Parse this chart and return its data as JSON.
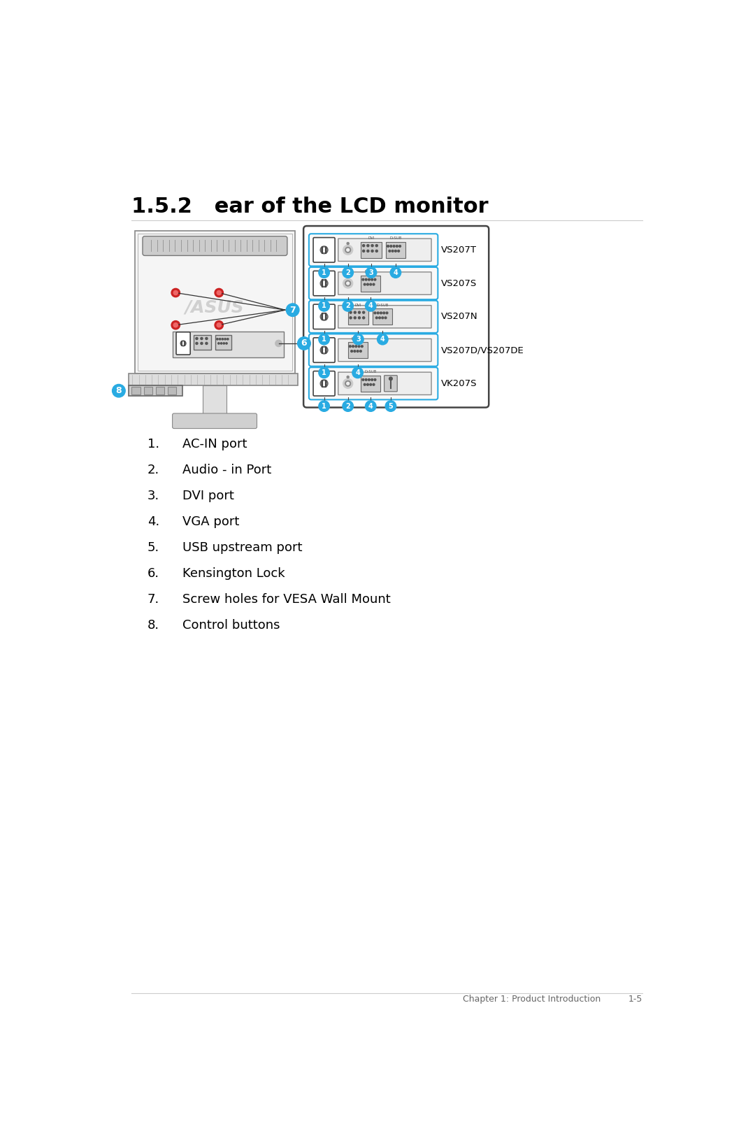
{
  "title": "1.5.2   ear of the LCD monitor",
  "background_color": "#ffffff",
  "list_items": [
    "AC-IN port",
    "Audio - in Port",
    "DVI port",
    "VGA port",
    "USB upstream port",
    "Kensington Lock",
    "Screw holes for VESA Wall Mount",
    "Control buttons"
  ],
  "model_labels": [
    "VS207T",
    "VS207S",
    "VS207N",
    "VS207D/VS207DE",
    "VK207S"
  ],
  "row_configs": [
    {
      "has_audio": true,
      "has_dvi": true,
      "has_vga": true,
      "has_usb": false,
      "nums": [
        1,
        2,
        3,
        4
      ]
    },
    {
      "has_audio": true,
      "has_dvi": false,
      "has_vga": true,
      "has_usb": false,
      "nums": [
        1,
        2,
        4
      ]
    },
    {
      "has_audio": false,
      "has_dvi": true,
      "has_vga": true,
      "has_usb": false,
      "nums": [
        1,
        3,
        4
      ]
    },
    {
      "has_audio": false,
      "has_dvi": false,
      "has_vga": true,
      "has_usb": false,
      "nums": [
        1,
        4
      ]
    },
    {
      "has_audio": true,
      "has_dvi": false,
      "has_vga": true,
      "has_usb": true,
      "nums": [
        1,
        2,
        4,
        5
      ]
    }
  ],
  "footer_text": "Chapter 1: Product Introduction",
  "footer_page": "1-5",
  "cyan_color": "#29abe2",
  "title_fontsize": 22,
  "list_fontsize": 13,
  "footer_fontsize": 9
}
